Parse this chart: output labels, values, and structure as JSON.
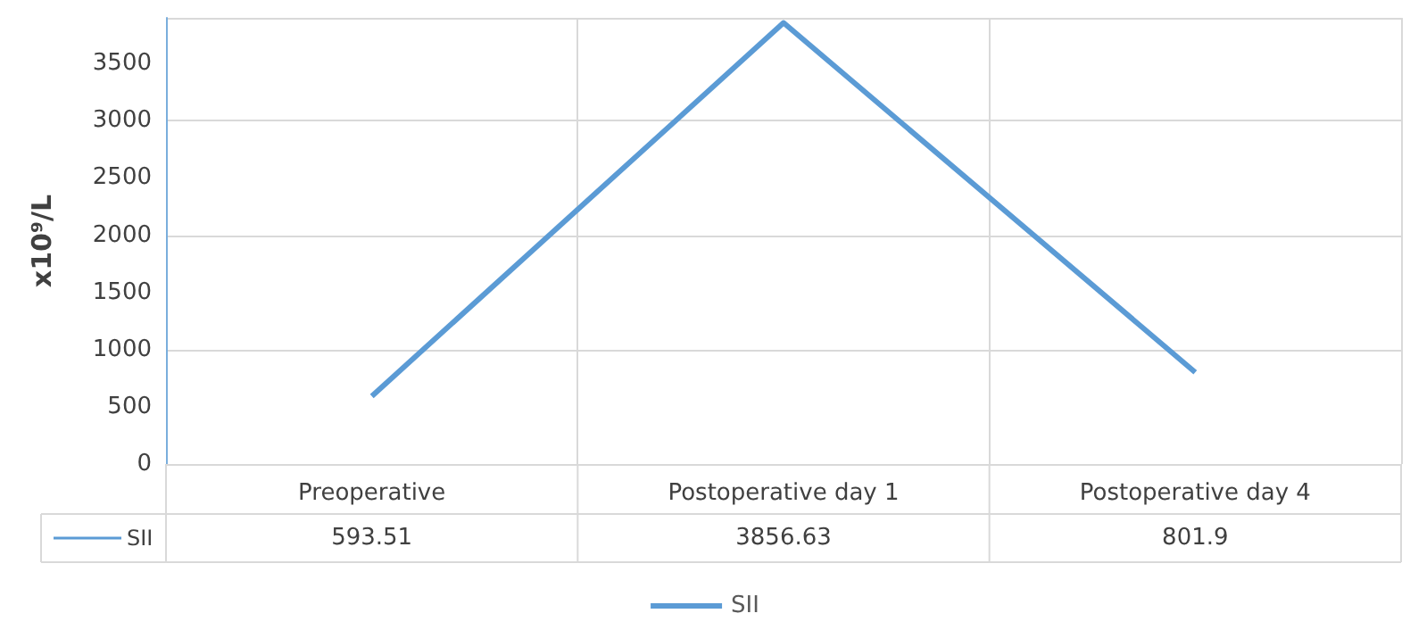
{
  "chart_data": {
    "type": "line",
    "ylabel": "x10⁹/L",
    "categories": [
      "Preoperative",
      "Postoperative day 1",
      "Postoperative day 4"
    ],
    "series": [
      {
        "name": "SII",
        "color": "#5b9bd5",
        "values": [
          593.51,
          3856.63,
          801.9
        ]
      }
    ],
    "ylim": [
      0,
      3900
    ],
    "yticks": [
      0,
      500,
      1000,
      1500,
      2000,
      2500,
      3000,
      3500
    ],
    "grid": true,
    "legend": "bottom",
    "data_labels": true,
    "marker": "none"
  }
}
